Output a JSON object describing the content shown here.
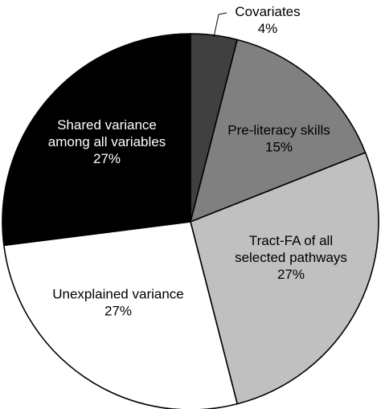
{
  "chart_data": {
    "type": "pie",
    "start_angle_deg": 0,
    "direction": "clockwise",
    "slices": [
      {
        "label": [
          "Covariates",
          "4%"
        ],
        "value": 4,
        "color": "#404040",
        "text_color": "#000000",
        "label_position": "outside"
      },
      {
        "label": [
          "Pre-literacy skills",
          "15%"
        ],
        "value": 15,
        "color": "#808080",
        "text_color": "#000000",
        "label_position": "inside"
      },
      {
        "label": [
          "Tract-FA of all",
          "selected pathways",
          "27%"
        ],
        "value": 27,
        "color": "#c0c0c0",
        "text_color": "#000000",
        "label_position": "inside"
      },
      {
        "label": [
          "Unexplained variance",
          "27%"
        ],
        "value": 27,
        "color": "#ffffff",
        "text_color": "#000000",
        "label_position": "inside"
      },
      {
        "label": [
          "Shared variance",
          "among all variables",
          "27%"
        ],
        "value": 27,
        "color": "#000000",
        "text_color": "#ffffff",
        "label_position": "inside"
      }
    ]
  }
}
